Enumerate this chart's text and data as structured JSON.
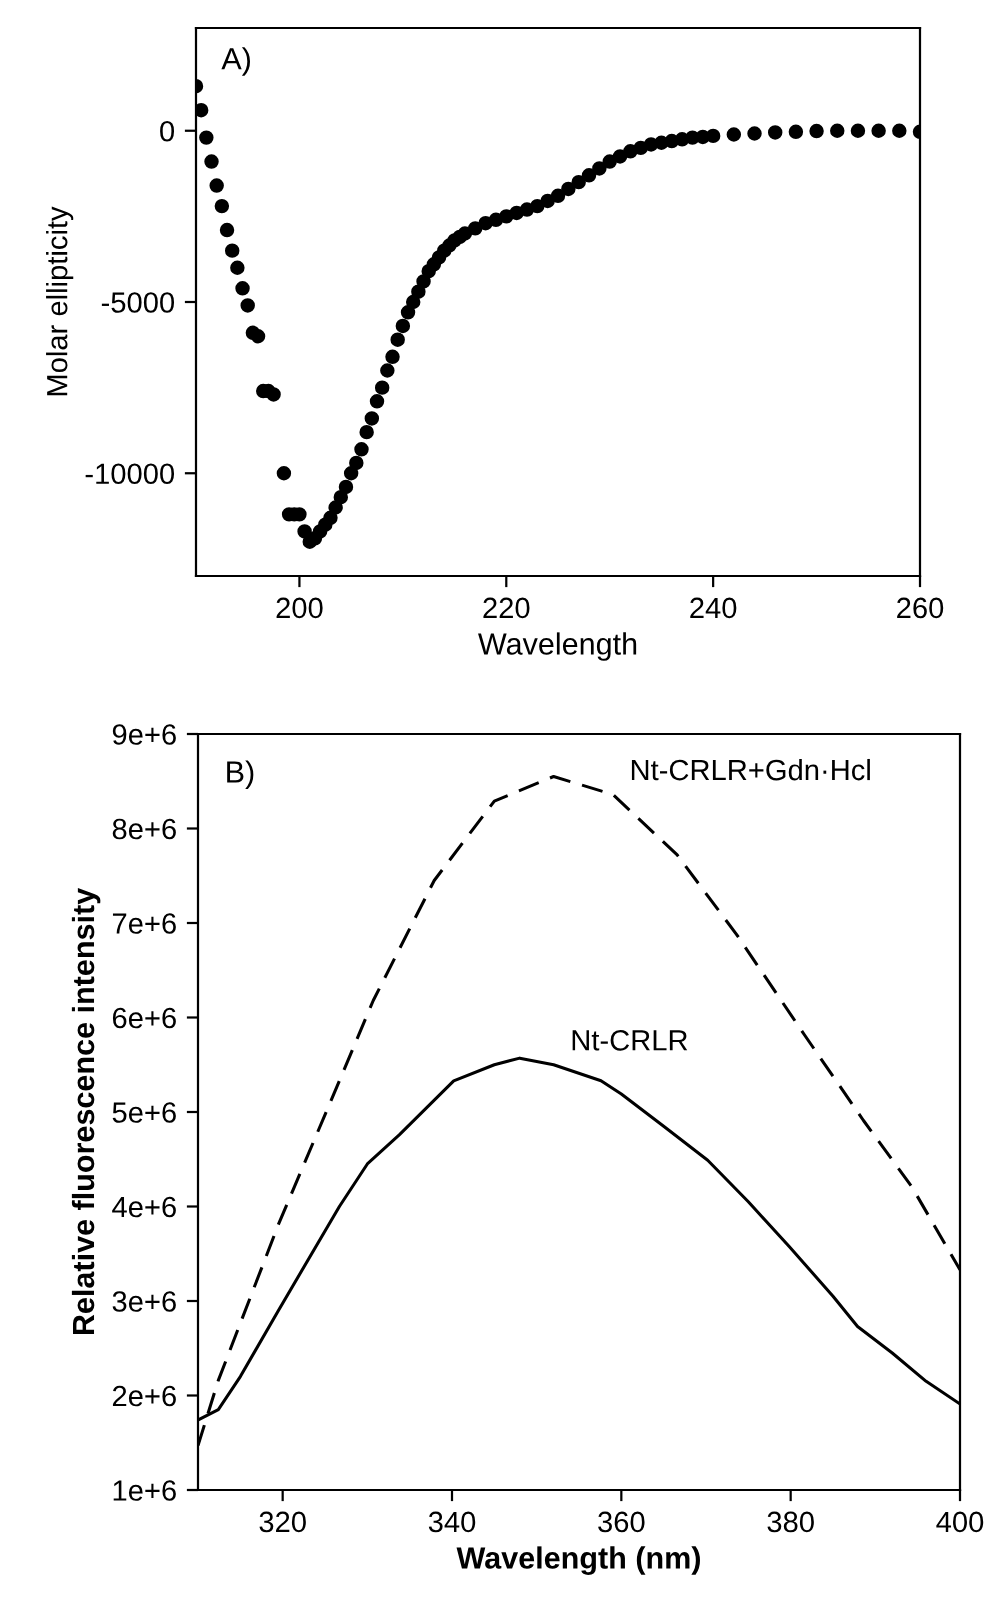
{
  "chart_data": [
    {
      "type": "scatter",
      "xlabel": "Wavelength",
      "ylabel": "Molar ellipticity",
      "annotations": [
        "A)"
      ],
      "xlim": [
        190,
        260
      ],
      "ylim": [
        -13000,
        3000
      ],
      "xticks": [
        200,
        220,
        240,
        260
      ],
      "yticks": [
        -10000,
        -5000,
        0
      ],
      "marker": "circle",
      "grid": false,
      "legend": false,
      "series": [
        {
          "color": "#000000",
          "x": [
            190,
            190.5,
            191,
            191.5,
            192,
            192.5,
            193,
            193.5,
            194,
            194.5,
            195,
            195.5,
            196,
            196.5,
            197,
            197.5,
            198.5,
            199,
            199.5,
            200,
            200.5,
            201,
            201.5,
            202,
            202.5,
            203,
            203.5,
            204,
            204.5,
            205,
            205.5,
            206,
            206.5,
            207,
            207.5,
            208,
            208.5,
            209,
            209.5,
            210,
            210.5,
            211,
            211.5,
            212,
            212.5,
            213,
            213.5,
            214,
            214.5,
            215,
            215.5,
            216,
            217,
            218,
            219,
            220,
            221,
            222,
            223,
            224,
            225,
            226,
            227,
            228,
            229,
            230,
            231,
            232,
            233,
            234,
            235,
            236,
            237,
            238,
            239,
            240,
            242,
            244,
            246,
            248,
            250,
            252,
            254,
            256,
            258,
            260
          ],
          "values": [
            1300,
            600,
            -200,
            -900,
            -1600,
            -2200,
            -2900,
            -3500,
            -4000,
            -4600,
            -5100,
            -5900,
            -6000,
            -7600,
            -7600,
            -7700,
            -10000,
            -11200,
            -11200,
            -11200,
            -11700,
            -12000,
            -11900,
            -11700,
            -11500,
            -11300,
            -11000,
            -10700,
            -10400,
            -10000,
            -9700,
            -9300,
            -8800,
            -8400,
            -7900,
            -7500,
            -7000,
            -6600,
            -6100,
            -5700,
            -5300,
            -5000,
            -4700,
            -4400,
            -4100,
            -3900,
            -3700,
            -3500,
            -3350,
            -3200,
            -3100,
            -3000,
            -2850,
            -2700,
            -2600,
            -2500,
            -2400,
            -2300,
            -2200,
            -2050,
            -1900,
            -1700,
            -1500,
            -1300,
            -1100,
            -900,
            -750,
            -600,
            -500,
            -400,
            -350,
            -300,
            -250,
            -200,
            -180,
            -150,
            -110,
            -80,
            -50,
            -30,
            -10,
            0,
            0,
            0,
            0,
            -30
          ]
        }
      ]
    },
    {
      "type": "line",
      "xlabel": "Wavelength (nm)",
      "ylabel": "Relative fluorescence intensity",
      "annotations": [
        "B)"
      ],
      "xlim": [
        310,
        400
      ],
      "ylim": [
        1000000,
        9000000
      ],
      "xticks": [
        320,
        340,
        360,
        380,
        400
      ],
      "yticks": [
        {
          "value": 1000000,
          "label": "1e+6"
        },
        {
          "value": 2000000,
          "label": "2e+6"
        },
        {
          "value": 3000000,
          "label": "3e+6"
        },
        {
          "value": 4000000,
          "label": "4e+6"
        },
        {
          "value": 5000000,
          "label": "5e+6"
        },
        {
          "value": 6000000,
          "label": "6e+6"
        },
        {
          "value": 7000000,
          "label": "7e+6"
        },
        {
          "value": 8000000,
          "label": "8e+6"
        },
        {
          "value": 9000000,
          "label": "9e+6"
        }
      ],
      "grid": false,
      "legend": false,
      "marker": "none",
      "series": [
        {
          "name": "Nt-CRLR+Gdn·Hcl",
          "color": "#000000",
          "line_style": "dashed",
          "x": [
            310,
            312.4,
            319.5,
            326.7,
            330.7,
            337.9,
            345,
            352,
            359,
            366.6,
            373.6,
            381.6,
            388.6,
            394.3,
            400
          ],
          "values": [
            1470000,
            2160000,
            3810000,
            5330000,
            6180000,
            7450000,
            8290000,
            8550000,
            8360000,
            7720000,
            6880000,
            5820000,
            4910000,
            4210000,
            3330000
          ]
        },
        {
          "name": "Nt-CRLR",
          "color": "#000000",
          "line_style": "solid",
          "x": [
            310,
            312.4,
            315,
            319.5,
            326.7,
            330,
            333.8,
            340.2,
            345,
            348,
            352,
            357.6,
            360,
            365,
            370.2,
            375,
            379.8,
            385,
            387.9,
            392,
            396,
            400
          ],
          "values": [
            1740000,
            1850000,
            2200000,
            2900000,
            4000000,
            4450000,
            4760000,
            5330000,
            5500000,
            5570000,
            5500000,
            5330000,
            5190000,
            4850000,
            4490000,
            4050000,
            3580000,
            3050000,
            2730000,
            2450000,
            2150000,
            1910000
          ]
        }
      ]
    }
  ]
}
